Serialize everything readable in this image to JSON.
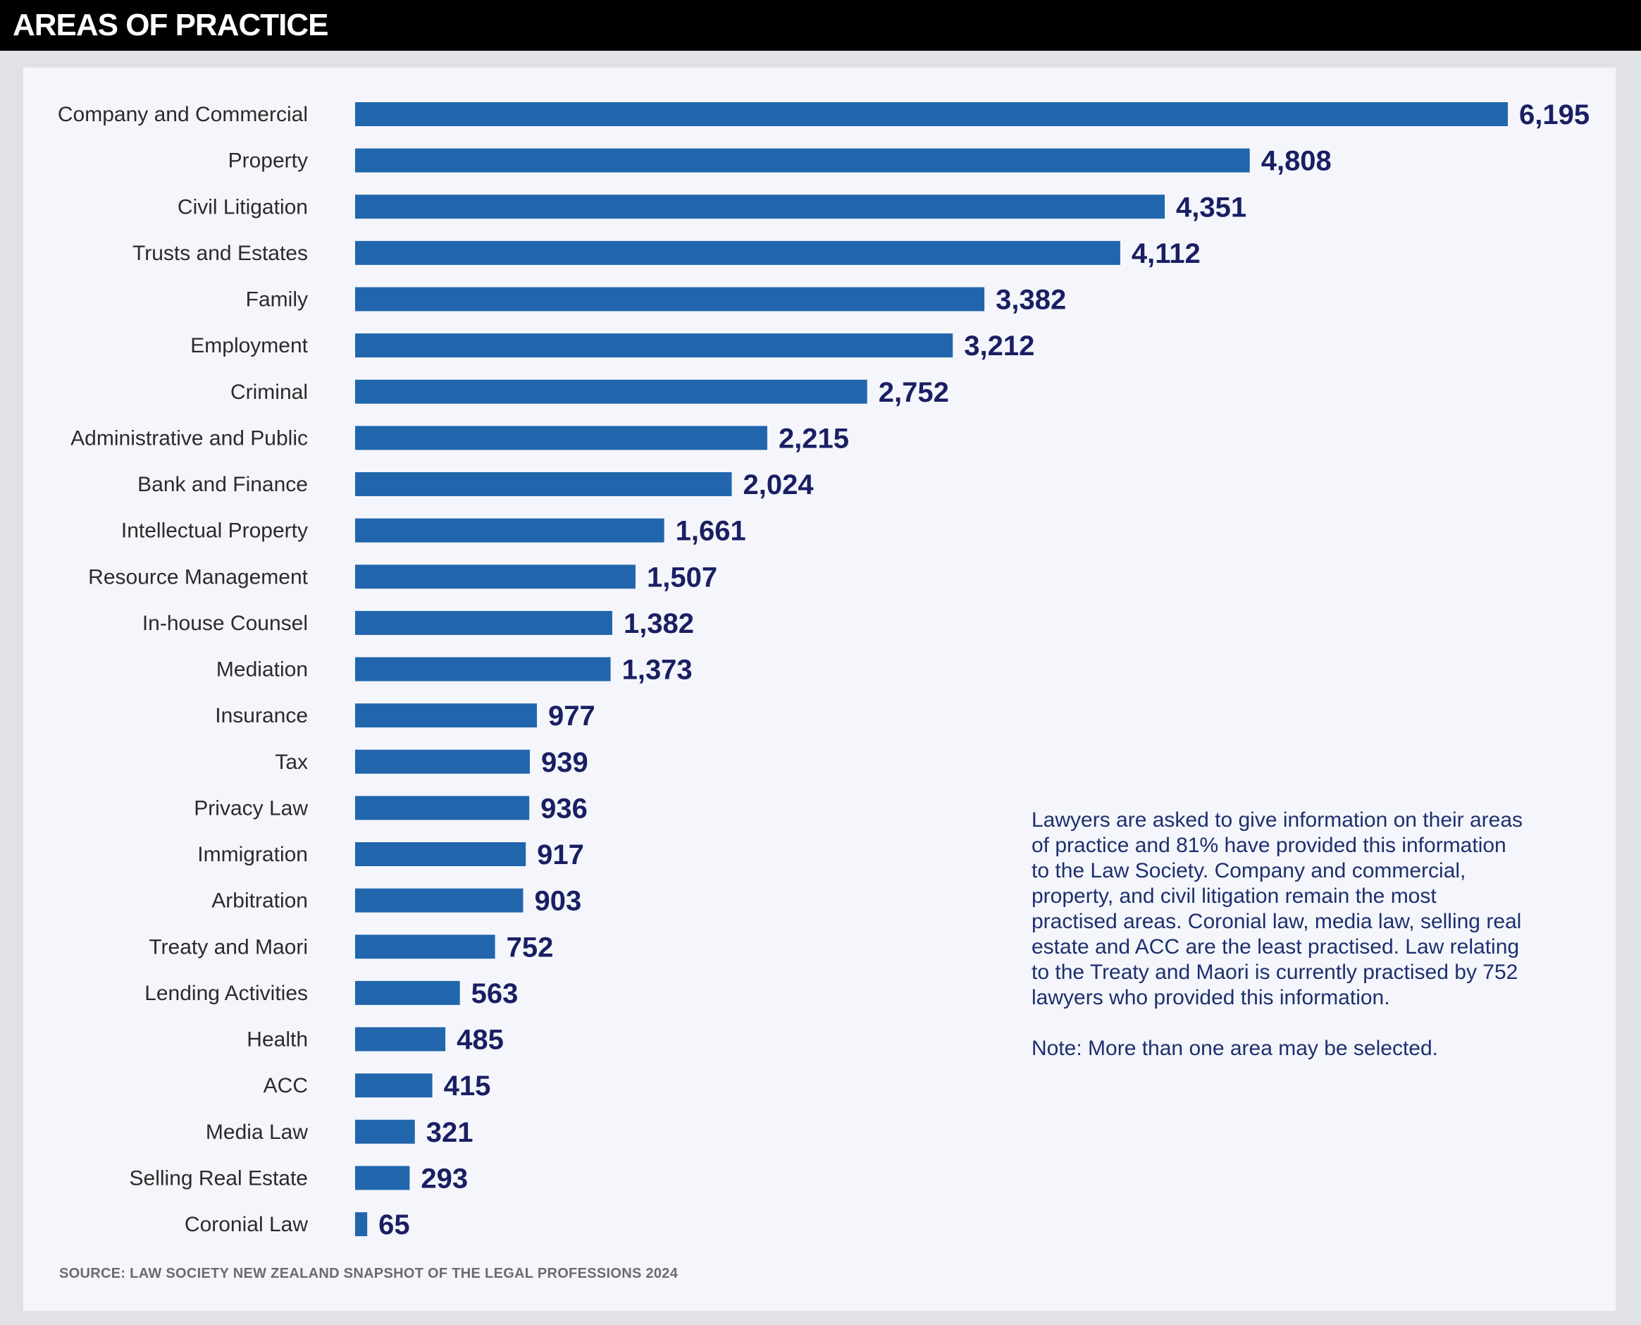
{
  "header": {
    "title": "AREAS OF PRACTICE"
  },
  "colors": {
    "bar": "#2166ac",
    "value_text": "#1a1f63",
    "note_text": "#1e2f6e"
  },
  "chart_data": {
    "type": "bar",
    "orientation": "horizontal",
    "categories": [
      "Company and Commercial",
      "Property",
      "Civil Litigation",
      "Trusts and Estates",
      "Family",
      "Employment",
      "Criminal",
      "Administrative and Public",
      "Bank and Finance",
      "Intellectual Property",
      "Resource Management",
      "In-house Counsel",
      "Mediation",
      "Insurance",
      "Tax",
      "Privacy Law",
      "Immigration",
      "Arbitration",
      "Treaty and Maori",
      "Lending Activities",
      "Health",
      "ACC",
      "Media Law",
      "Selling Real Estate",
      "Coronial Law"
    ],
    "values": [
      6195,
      4808,
      4351,
      4112,
      3382,
      3212,
      2752,
      2215,
      2024,
      1661,
      1507,
      1382,
      1373,
      977,
      939,
      936,
      917,
      903,
      752,
      563,
      485,
      415,
      321,
      293,
      65
    ],
    "value_labels": [
      "6,195",
      "4,808",
      "4,351",
      "4,112",
      "3,382",
      "3,212",
      "2,752",
      "2,215",
      "2,024",
      "1,661",
      "1,507",
      "1,382",
      "1,373",
      "977",
      "939",
      "936",
      "917",
      "903",
      "752",
      "563",
      "485",
      "415",
      "321",
      "293",
      "65"
    ],
    "xlim": [
      0,
      6195
    ],
    "grid": false,
    "axes_shown": false
  },
  "note": {
    "paragraph1": "Lawyers are asked to give information on their areas of practice and 81% have provided this information to the Law Society. Company and commercial, property, and civil litigation remain the most practised areas. Coronial law, media law, selling real estate and ACC are the least practised. Law relating to the Treaty and Maori is currently practised by 752 lawyers who provided this information.",
    "paragraph2": "Note: More than one area may be selected."
  },
  "source": "SOURCE: LAW SOCIETY NEW ZEALAND SNAPSHOT OF THE LEGAL PROFESSIONS 2024"
}
